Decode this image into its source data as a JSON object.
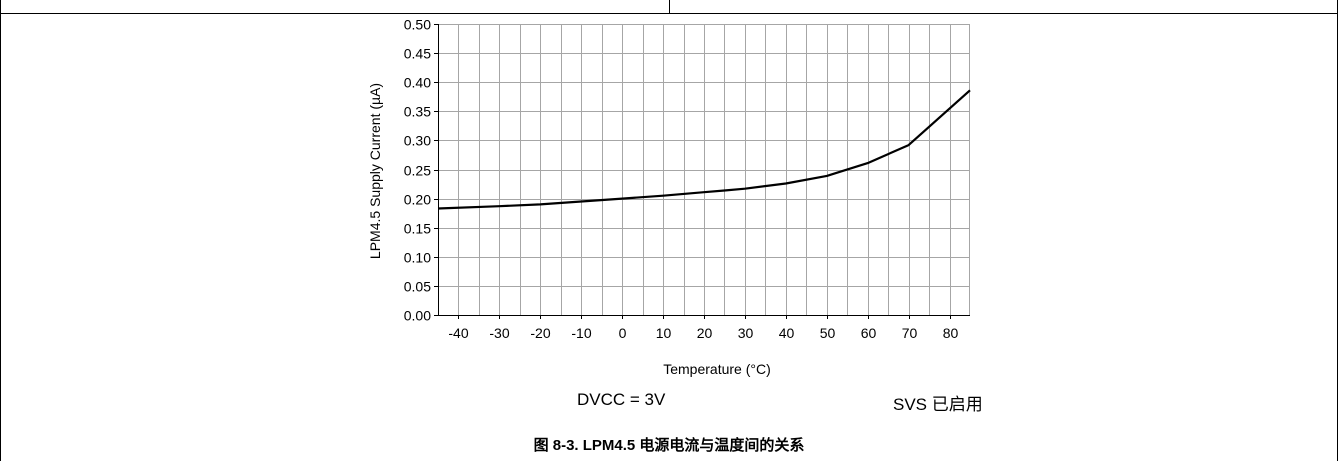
{
  "chart_data": {
    "type": "line",
    "xlabel": "Temperature (°C)",
    "ylabel": "LPM4.5 Supply Current (µA)",
    "xlim": [
      -45,
      85
    ],
    "ylim": [
      0,
      0.5
    ],
    "x_ticks": [
      -40,
      -30,
      -20,
      -10,
      0,
      10,
      20,
      30,
      40,
      50,
      60,
      70,
      80
    ],
    "x_tick_labels": [
      "-40",
      "-30",
      "-20",
      "-10",
      "0",
      "10",
      "20",
      "30",
      "40",
      "50",
      "60",
      "70",
      "80"
    ],
    "y_ticks": [
      0,
      0.05,
      0.1,
      0.15,
      0.2,
      0.25,
      0.3,
      0.35,
      0.4,
      0.45,
      0.5
    ],
    "y_tick_labels": [
      "0.00",
      "0.05",
      "0.10",
      "0.15",
      "0.20",
      "0.25",
      "0.30",
      "0.35",
      "0.40",
      "0.45",
      "0.50"
    ],
    "grid": true,
    "series": [
      {
        "x": [
          -45,
          -30,
          -20,
          -10,
          0,
          10,
          20,
          25,
          30,
          40,
          50,
          60,
          70,
          85
        ],
        "y": [
          0.183,
          0.187,
          0.19,
          0.195,
          0.2,
          0.205,
          0.211,
          0.214,
          0.217,
          0.226,
          0.239,
          0.261,
          0.292,
          0.386
        ]
      }
    ]
  },
  "conditions": {
    "left": "DVCC = 3V",
    "right": "SVS 已启用"
  },
  "caption": "图 8-3. LPM4.5 电源电流与温度间的关系",
  "colors": {
    "line": "#000000",
    "grid": "#a6a6a6",
    "axis": "#000000"
  }
}
